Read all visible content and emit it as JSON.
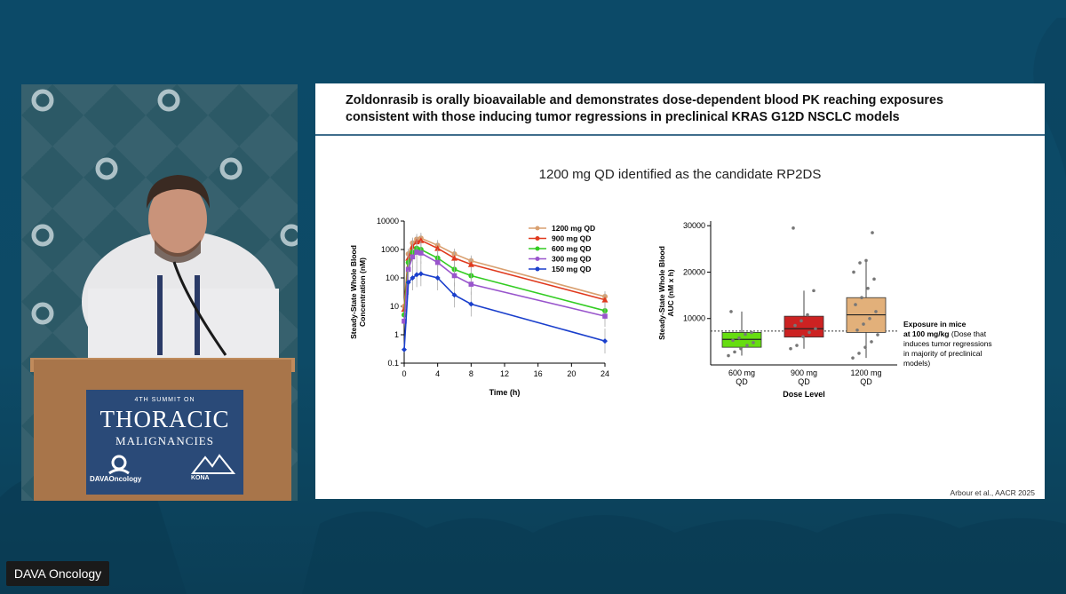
{
  "colors": {
    "slide_rule": "#3f6e8c",
    "background": "#0d4560"
  },
  "video": {
    "sign": {
      "line_small": "4TH SUMMIT ON",
      "line_big": "THORACIC",
      "line_mid": "MALIGNANCIES",
      "logo_left": "DAVAOncology",
      "logo_right": "KONA"
    }
  },
  "slide": {
    "title_line1": "Zoldonrasib is orally bioavailable and demonstrates dose-dependent blood PK reaching exposures",
    "title_line2": "consistent with those inducing tumor regressions in preclinical KRAS G12D NSCLC models",
    "subtitle": "1200 mg QD identified as the candidate RP2DS",
    "footnote": "Arbour et al., AACR 2025"
  },
  "caption": "DAVA Oncology",
  "chart_data": [
    {
      "type": "line",
      "xlabel": "Time (h)",
      "ylabel_line1": "Steady-State Whole Blood",
      "ylabel_line2": "Concentration (nM)",
      "yscale": "log",
      "ylim": [
        0.1,
        10000
      ],
      "xlim": [
        0,
        24
      ],
      "x_ticks": [
        0,
        4,
        8,
        12,
        16,
        20,
        24
      ],
      "x_tick_labels": [
        "0",
        "4",
        "8",
        "12",
        "16",
        "20",
        "24"
      ],
      "y_ticks": [
        0.1,
        1,
        10,
        100,
        1000,
        10000
      ],
      "y_tick_labels": [
        "0.1",
        "1",
        "10",
        "100",
        "1000",
        "10000"
      ],
      "legend_position": "top-right",
      "series": [
        {
          "name": "1200 mg QD",
          "color": "#d9a070",
          "marker": "circle",
          "x": [
            0,
            0.5,
            1,
            1.5,
            2,
            4,
            6,
            8,
            24
          ],
          "y": [
            10,
            700,
            1700,
            2300,
            2500,
            1400,
            700,
            400,
            22
          ]
        },
        {
          "name": "900 mg QD",
          "color": "#e03a1e",
          "marker": "triangle",
          "x": [
            0,
            0.5,
            1,
            1.5,
            2,
            4,
            6,
            8,
            24
          ],
          "y": [
            8,
            500,
            1300,
            1900,
            2100,
            1100,
            500,
            300,
            17
          ]
        },
        {
          "name": "600 mg QD",
          "color": "#33cc22",
          "marker": "circle",
          "x": [
            0,
            0.5,
            1,
            1.5,
            2,
            4,
            6,
            8,
            24
          ],
          "y": [
            5,
            350,
            800,
            1100,
            1000,
            500,
            200,
            120,
            7
          ]
        },
        {
          "name": "300 mg QD",
          "color": "#9955cc",
          "marker": "square",
          "x": [
            0,
            0.5,
            1,
            1.5,
            2,
            4,
            6,
            8,
            24
          ],
          "y": [
            3,
            200,
            550,
            800,
            750,
            350,
            120,
            60,
            4.5
          ]
        },
        {
          "name": "150 mg QD",
          "color": "#1a3fcc",
          "marker": "diamond",
          "x": [
            0,
            0.5,
            1,
            1.5,
            2,
            4,
            6,
            8,
            24
          ],
          "y": [
            0.3,
            70,
            100,
            130,
            140,
            100,
            25,
            12,
            0.6
          ]
        }
      ]
    },
    {
      "type": "box",
      "xlabel": "Dose Level",
      "ylabel_line1": "Steady-State Whole Blood",
      "ylabel_line2": "AUC (nM x h)",
      "ylim": [
        0,
        31000
      ],
      "y_ticks": [
        10000,
        20000,
        30000
      ],
      "y_tick_labels": [
        "10000",
        "20000",
        "30000"
      ],
      "reference_line": 7300,
      "annotation_bold_1": "Exposure in mice",
      "annotation_bold_2": "at 100 mg/kg",
      "annotation_normal_2": " (Dose that",
      "annotation_normal_3": "induces tumor regressions",
      "annotation_normal_4": "in majority of preclinical",
      "annotation_normal_5": "models)",
      "groups": [
        {
          "label_line1": "600 mg",
          "label_line2": "QD",
          "color": "#66dd11",
          "min": 2000,
          "q1": 3800,
          "median": 5500,
          "q3": 7000,
          "max": 11500,
          "points": [
            2000,
            2800,
            3500,
            4200,
            4800,
            5300,
            5800,
            6600,
            7000,
            11500
          ]
        },
        {
          "label_line1": "900 mg",
          "label_line2": "QD",
          "color": "#cc2222",
          "min": 3500,
          "q1": 6000,
          "median": 7800,
          "q3": 10500,
          "max": 16000,
          "points": [
            3500,
            4200,
            6100,
            7000,
            7800,
            8500,
            9500,
            10800,
            16000,
            29500
          ]
        },
        {
          "label_line1": "1200 mg",
          "label_line2": "QD",
          "color": "#e2b07a",
          "min": 1500,
          "q1": 7000,
          "median": 10800,
          "q3": 14500,
          "max": 22500,
          "points": [
            1500,
            2500,
            3800,
            5000,
            6500,
            7500,
            8800,
            10000,
            11500,
            13000,
            14500,
            16500,
            18500,
            20000,
            22000,
            22500,
            28500
          ]
        }
      ]
    }
  ]
}
